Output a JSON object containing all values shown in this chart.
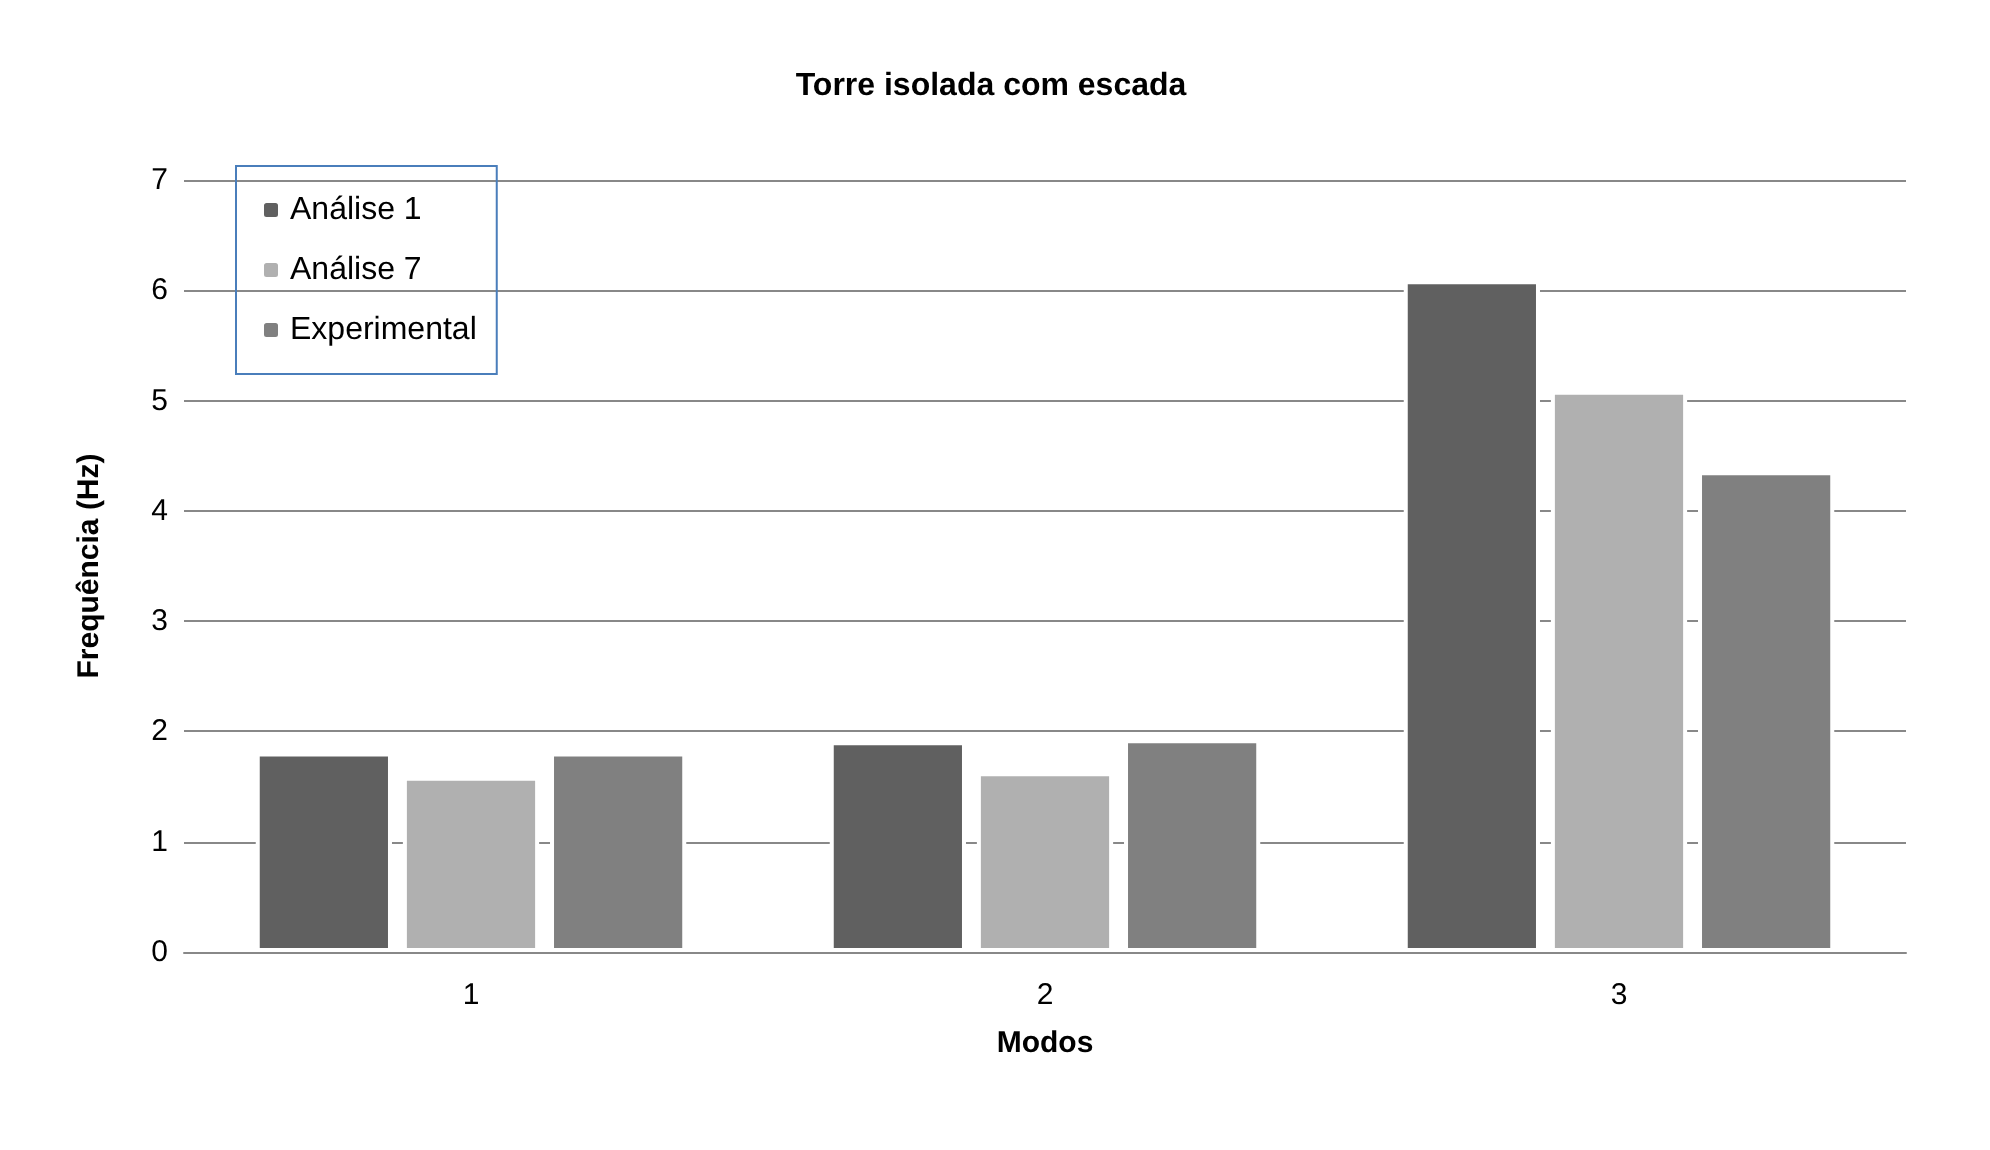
{
  "chart_data": {
    "type": "bar",
    "title": "Torre isolada com escada",
    "xlabel": "Modos",
    "ylabel": "Frequência (Hz)",
    "categories": [
      "1",
      "2",
      "3"
    ],
    "series": [
      {
        "name": "Análise 1",
        "color": "#606060",
        "values": [
          1.81,
          1.91,
          6.09
        ]
      },
      {
        "name": "Análise 7",
        "color": "#b0b0b0",
        "values": [
          1.59,
          1.63,
          5.09
        ]
      },
      {
        "name": "Experimental",
        "color": "#808080",
        "values": [
          1.81,
          1.93,
          4.36
        ]
      }
    ],
    "ylim": [
      0,
      7
    ],
    "yticks": [
      0,
      1,
      2,
      3,
      4,
      5,
      6,
      7
    ],
    "grid": "y",
    "legend": "top left"
  }
}
